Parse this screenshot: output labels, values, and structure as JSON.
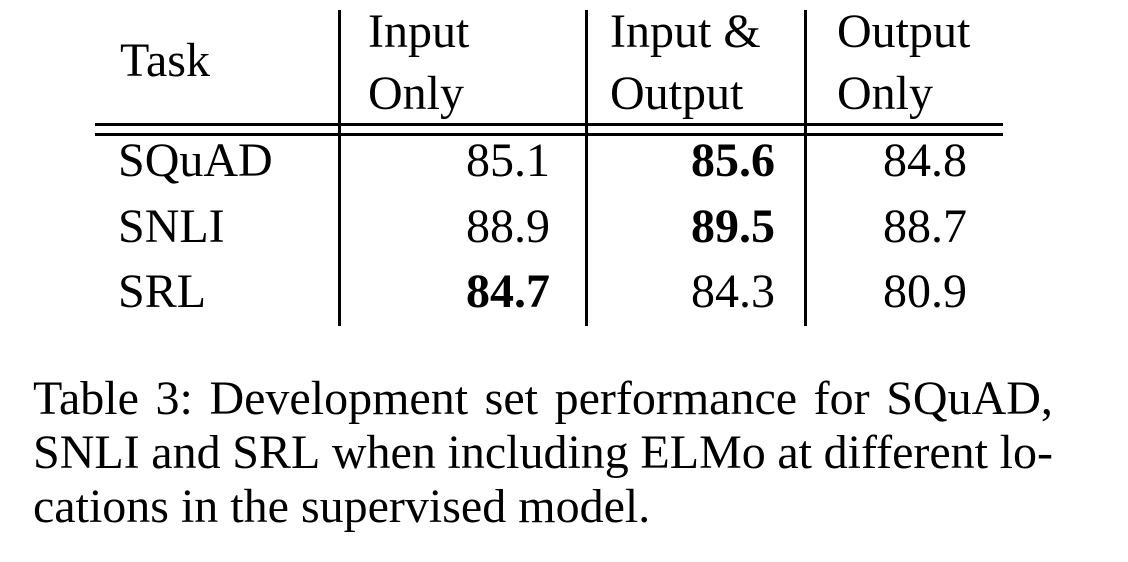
{
  "table": {
    "header": {
      "task": "Task",
      "input_only": "Input\nOnly",
      "input_and_output": "Input &\nOutput",
      "output_only": "Output\nOnly"
    },
    "rows": [
      {
        "task": "SQuAD",
        "input_only": "85.1",
        "input_and_output": "85.6",
        "output_only": "84.8",
        "best_column": "input_and_output"
      },
      {
        "task": "SNLI",
        "input_only": "88.9",
        "input_and_output": "89.5",
        "output_only": "88.7",
        "best_column": "input_and_output"
      },
      {
        "task": "SRL",
        "input_only": "84.7",
        "input_and_output": "84.3",
        "output_only": "80.9",
        "best_column": "input_only"
      }
    ]
  },
  "chart_data": {
    "type": "table",
    "columns": [
      "Task",
      "Input Only",
      "Input & Output",
      "Output Only"
    ],
    "rows": [
      [
        "SQuAD",
        85.1,
        85.6,
        84.8
      ],
      [
        "SNLI",
        88.9,
        89.5,
        88.7
      ],
      [
        "SRL",
        84.7,
        84.3,
        80.9
      ]
    ],
    "bold_cells": [
      [
        "SQuAD",
        "Input & Output",
        85.6
      ],
      [
        "SNLI",
        "Input & Output",
        89.5
      ],
      [
        "SRL",
        "Input Only",
        84.7
      ]
    ]
  },
  "caption": {
    "lines": [
      "Table 3: Development set performance for SQuAD,",
      "SNLI and SRL when including ELMo at different lo-",
      "cations in the supervised model."
    ],
    "full_text": "Table 3: Development set performance for SQuAD, SNLI and SRL when including ELMo at different locations in the supervised model."
  }
}
